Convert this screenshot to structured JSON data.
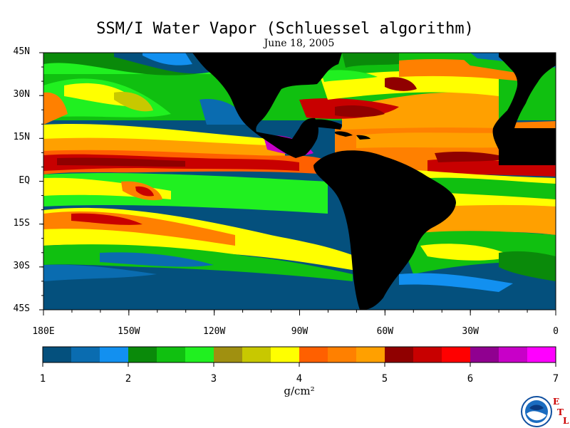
{
  "title": "SSM/I Water Vapor (Schluessel algorithm)",
  "subtitle": "June 18, 2005",
  "units": "g/cm²",
  "map": {
    "lat_labels": [
      "45N",
      "30N",
      "15N",
      "EQ",
      "15S",
      "30S",
      "45S"
    ],
    "lon_labels": [
      "180E",
      "150W",
      "120W",
      "90W",
      "60W",
      "30W",
      "0"
    ],
    "lat_range": [
      -45,
      45
    ],
    "lon_range": [
      -180,
      0
    ],
    "land_color": "#000000"
  },
  "colorbar": {
    "min": 1,
    "max": 7,
    "tick_labels": [
      "1",
      "2",
      "3",
      "4",
      "5",
      "6",
      "7"
    ],
    "colors": [
      "#04507d",
      "#0a6cb0",
      "#1290f0",
      "#0a8a0a",
      "#10c010",
      "#20f020",
      "#a09010",
      "#c8c800",
      "#ffff00",
      "#ff6000",
      "#ff8000",
      "#ffa000",
      "#900000",
      "#c80000",
      "#ff0000",
      "#900090",
      "#c800c8",
      "#ff00ff"
    ]
  },
  "logo": {
    "name": "NOAA",
    "lab_letters": [
      "E",
      "T",
      "L"
    ]
  }
}
